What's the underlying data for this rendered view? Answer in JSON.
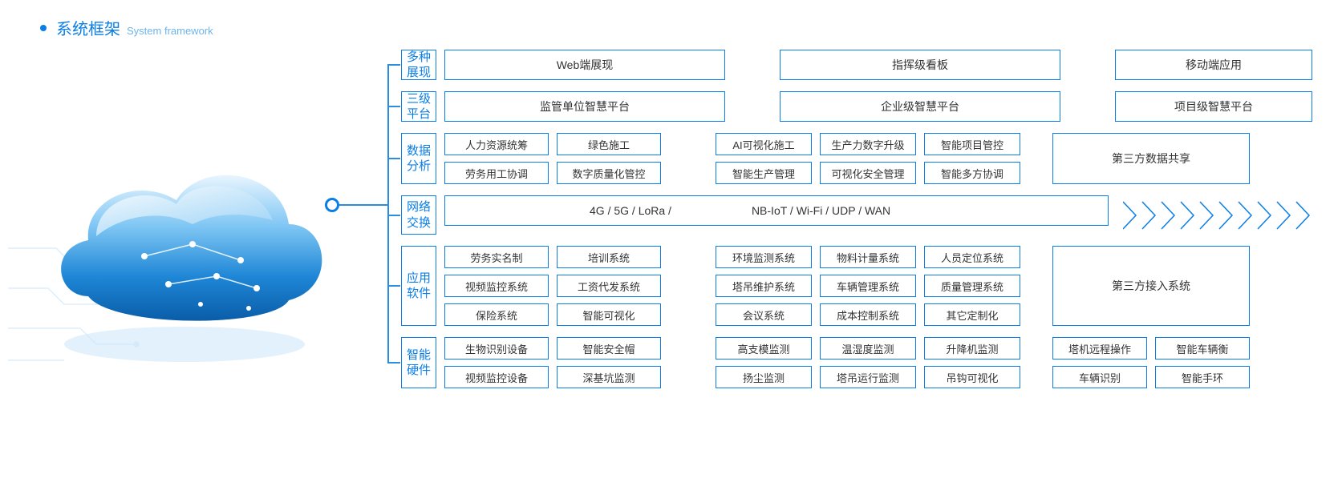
{
  "colors": {
    "primary": "#0a7ee6",
    "primary_light": "#6db4ec",
    "text": "#333333",
    "border": "#0a7ee6",
    "bg": "#ffffff",
    "cloud_top": "#bfe4fb",
    "cloud_mid": "#3aa5ea",
    "cloud_dark": "#0a5da8"
  },
  "header": {
    "title_cn": "系统框架",
    "title_en": "System framework"
  },
  "rows": [
    {
      "label": "多种展现",
      "type": "big3",
      "items": [
        "Web端展现",
        "指挥级看板",
        "移动端应用"
      ],
      "widths": [
        350,
        350,
        246
      ]
    },
    {
      "label": "三级平台",
      "type": "big3",
      "items": [
        "监管单位智慧平台",
        "企业级智慧平台",
        "项目级智慧平台"
      ],
      "widths": [
        350,
        350,
        246
      ]
    },
    {
      "label": "数据分析",
      "type": "grid2",
      "group1": [
        [
          "人力资源统筹",
          "绿色施工"
        ],
        [
          "劳务用工协调",
          "数字质量化管控"
        ]
      ],
      "group2": [
        [
          "AI可视化施工",
          "生产力数字升级",
          "智能项目管控"
        ],
        [
          "智能生产管理",
          "可视化安全管理",
          "智能多方协调"
        ]
      ],
      "tall": "第三方数据共享",
      "g1w": [
        130,
        130
      ],
      "g2w": [
        120,
        120,
        120
      ],
      "tall_w": 246
    },
    {
      "label": "网络交换",
      "type": "network",
      "text1": "4G / 5G / LoRa /",
      "text2": "NB-IoT / Wi-Fi / UDP / WAN",
      "chevron_count": 10
    },
    {
      "label": "应用软件",
      "type": "grid3",
      "group1": [
        [
          "劳务实名制",
          "培训系统"
        ],
        [
          "视频监控系统",
          "工资代发系统"
        ],
        [
          "保险系统",
          "智能可视化"
        ]
      ],
      "group2": [
        [
          "环境监测系统",
          "物料计量系统",
          "人员定位系统"
        ],
        [
          "塔吊维护系统",
          "车辆管理系统",
          "质量管理系统"
        ],
        [
          "会议系统",
          "成本控制系统",
          "其它定制化"
        ]
      ],
      "tall": "第三方接入系统",
      "g1w": [
        130,
        130
      ],
      "g2w": [
        120,
        120,
        120
      ],
      "tall_w": 246
    },
    {
      "label": "智能硬件",
      "type": "grid2b",
      "group1": [
        [
          "生物识别设备",
          "智能安全帽"
        ],
        [
          "视频监控设备",
          "深基坑监测"
        ]
      ],
      "group2": [
        [
          "高支模监测",
          "温湿度监测",
          "升降机监测"
        ],
        [
          "扬尘监测",
          "塔吊运行监测",
          "吊钩可视化"
        ]
      ],
      "group3": [
        [
          "塔机远程操作",
          "智能车辆衡"
        ],
        [
          "车辆识别",
          "智能手环"
        ]
      ],
      "g1w": [
        130,
        130
      ],
      "g2w": [
        120,
        120,
        120
      ],
      "g3w": [
        118,
        118
      ]
    }
  ]
}
